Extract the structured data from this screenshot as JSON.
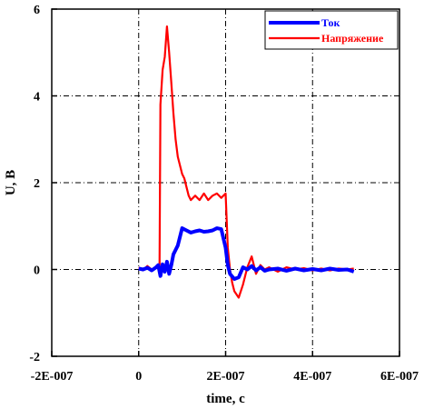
{
  "chart_data": {
    "type": "line",
    "title": "",
    "xlabel": "time, c",
    "ylabel": "U, B",
    "xlim": [
      -2e-07,
      6e-07
    ],
    "ylim": [
      -2,
      6
    ],
    "x_ticks": [
      -2e-07,
      0,
      2e-07,
      4e-07,
      6e-07
    ],
    "x_tick_labels": [
      "-2E-007",
      "0",
      "2E-007",
      "4E-007",
      "6E-007"
    ],
    "y_ticks": [
      -2,
      0,
      2,
      4,
      6
    ],
    "y_tick_labels": [
      "-2",
      "0",
      "2",
      "4",
      "6"
    ],
    "grid": true,
    "legend_position": "top-right",
    "series": [
      {
        "name": "Ток",
        "color": "#0000ff",
        "x": [
          0,
          1e-08,
          2e-08,
          3e-08,
          4e-08,
          4.5e-08,
          5e-08,
          5.5e-08,
          6e-08,
          6.5e-08,
          7e-08,
          7.5e-08,
          8e-08,
          8.5e-08,
          9e-08,
          1e-07,
          1.1e-07,
          1.2e-07,
          1.3e-07,
          1.4e-07,
          1.5e-07,
          1.6e-07,
          1.7e-07,
          1.8e-07,
          1.9e-07,
          2e-07,
          2.05e-07,
          2.1e-07,
          2.2e-07,
          2.3e-07,
          2.4e-07,
          2.5e-07,
          2.6e-07,
          2.7e-07,
          2.8e-07,
          2.9e-07,
          3e-07,
          3.2e-07,
          3.4e-07,
          3.6e-07,
          3.8e-07,
          4e-07,
          4.2e-07,
          4.4e-07,
          4.6e-07,
          4.8e-07,
          4.95e-07
        ],
        "y": [
          0.02,
          0,
          0.04,
          -0.02,
          0.05,
          0.1,
          -0.15,
          0.12,
          -0.05,
          0.18,
          -0.1,
          0.1,
          0.35,
          0.45,
          0.55,
          0.95,
          0.9,
          0.85,
          0.88,
          0.9,
          0.87,
          0.88,
          0.9,
          0.95,
          0.93,
          0.5,
          0.1,
          -0.1,
          -0.22,
          -0.18,
          0.05,
          0,
          0.08,
          -0.02,
          0.05,
          -0.03,
          0,
          0.02,
          -0.03,
          0.02,
          -0.02,
          0.01,
          -0.02,
          0.02,
          -0.01,
          0,
          -0.05
        ]
      },
      {
        "name": "Напряжение",
        "color": "#ff0000",
        "x": [
          0,
          1e-08,
          2e-08,
          3e-08,
          4e-08,
          4.8e-08,
          5e-08,
          5.5e-08,
          6e-08,
          6.5e-08,
          7e-08,
          7.5e-08,
          8e-08,
          8.5e-08,
          9e-08,
          1e-07,
          1.05e-07,
          1.1e-07,
          1.15e-07,
          1.2e-07,
          1.3e-07,
          1.4e-07,
          1.5e-07,
          1.6e-07,
          1.7e-07,
          1.8e-07,
          1.9e-07,
          2e-07,
          2.05e-07,
          2.1e-07,
          2.15e-07,
          2.2e-07,
          2.3e-07,
          2.4e-07,
          2.5e-07,
          2.6e-07,
          2.7e-07,
          2.8e-07,
          2.9e-07,
          3e-07,
          3.2e-07,
          3.4e-07,
          3.6e-07,
          3.8e-07,
          4e-07,
          4.2e-07,
          4.4e-07,
          4.6e-07,
          4.8e-07,
          4.95e-07
        ],
        "y": [
          0.05,
          -0.02,
          0.08,
          0,
          0.05,
          0,
          3.8,
          4.6,
          4.9,
          5.6,
          5.0,
          4.3,
          3.6,
          3.0,
          2.6,
          2.2,
          2.1,
          1.9,
          1.7,
          1.6,
          1.7,
          1.6,
          1.75,
          1.6,
          1.7,
          1.75,
          1.65,
          1.75,
          0.5,
          0,
          -0.3,
          -0.5,
          -0.65,
          -0.35,
          0.05,
          0.3,
          -0.1,
          0.1,
          0,
          0.05,
          -0.05,
          0.05,
          0,
          0.03,
          -0.02,
          0.02,
          -0.02,
          0.02,
          0,
          0.02
        ]
      }
    ]
  }
}
